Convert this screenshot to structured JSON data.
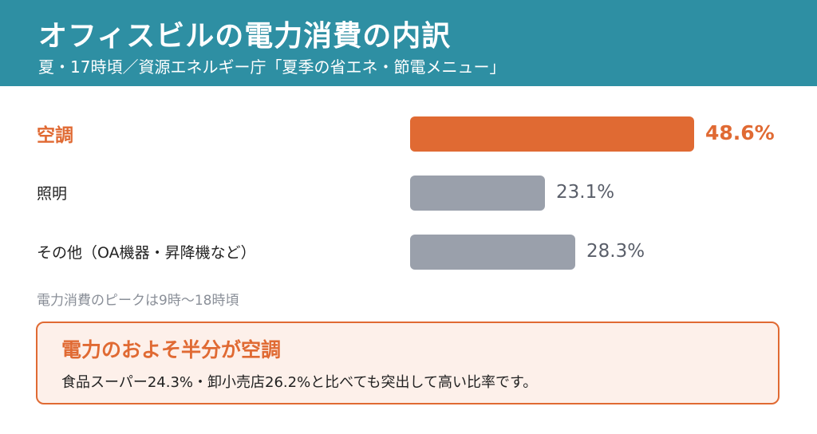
{
  "header": {
    "title": "オフィスビルの電力消費の内訳",
    "subtitle": "夏・17時頃／資源エネルギー庁「夏季の省エネ・節電メニュー」"
  },
  "colors": {
    "header_bg": "#2e8fa3",
    "highlight": "#e06a33",
    "bar_default": "#9aa0ab"
  },
  "chart_data": {
    "type": "bar",
    "orientation": "horizontal",
    "categories": [
      "空調",
      "照明",
      "その他（OA機器・昇降機など）"
    ],
    "values": [
      48.6,
      23.1,
      28.3
    ],
    "value_labels": [
      "48.6%",
      "23.1%",
      "28.3%"
    ],
    "highlight_index": 0,
    "xlim": [
      0,
      100
    ],
    "grid": false
  },
  "note": "電力消費のピークは9時〜18時頃",
  "callout": {
    "title": "電力のおよそ半分が空調",
    "body": "食品スーパー24.3%・卸小売店26.2%と比べても突出して高い比率です。"
  }
}
